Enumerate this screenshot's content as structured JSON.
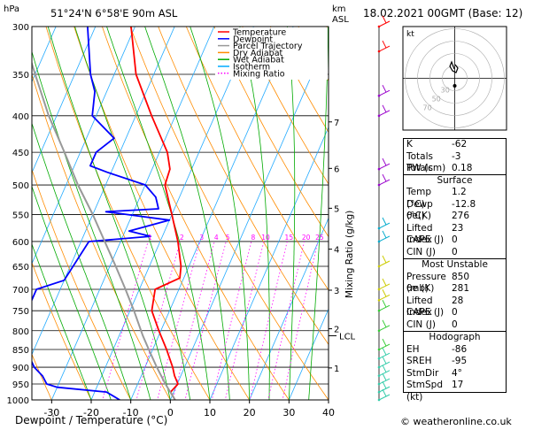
{
  "header": {
    "left_unit": "hPa",
    "location": "51°24'N  6°58'E  90m  ASL",
    "right_unit_top": "km",
    "right_unit_bottom": "ASL",
    "datetime": "18.02.2021  00GMT  (Base: 12)"
  },
  "footer": {
    "xlabel": "Dewpoint / Temperature (°C)",
    "copyright": "© weatheronline.co.uk"
  },
  "ylabel_right": "Mixing Ratio (g/kg)",
  "hodograph": {
    "unit": "kt",
    "ring_labels": [
      "70",
      "50",
      "30"
    ]
  },
  "legend": [
    {
      "label": "Temperature",
      "color": "#ff0000"
    },
    {
      "label": "Dewpoint",
      "color": "#0000ff"
    },
    {
      "label": "Parcel Trajectory",
      "color": "#999999"
    },
    {
      "label": "Dry Adiabat",
      "color": "#ff8c00"
    },
    {
      "label": "Wet Adiabat",
      "color": "#00aa00"
    },
    {
      "label": "Isotherm",
      "color": "#00aaff"
    },
    {
      "label": "Mixing Ratio",
      "color": "#ff00ff"
    }
  ],
  "chart_data": {
    "type": "line",
    "title": "",
    "xlabel": "Dewpoint / Temperature (°C)",
    "ylabel": "hPa",
    "xlim": [
      -35,
      40
    ],
    "ylim": [
      1000,
      300
    ],
    "y_scale": "log",
    "x_ticks": [
      -30,
      -20,
      -10,
      0,
      10,
      20,
      30,
      40
    ],
    "pressure_ticks": [
      300,
      350,
      400,
      450,
      500,
      550,
      600,
      650,
      700,
      750,
      800,
      850,
      900,
      950,
      1000
    ],
    "km_ticks": [
      {
        "label": "7",
        "p": 408
      },
      {
        "label": "6",
        "p": 474
      },
      {
        "label": "5",
        "p": 539
      },
      {
        "label": "4",
        "p": 615
      },
      {
        "label": "3",
        "p": 702
      },
      {
        "label": "2",
        "p": 795
      },
      {
        "label": "1",
        "p": 902
      }
    ],
    "lcl_label": "LCL",
    "lcl_p": 813,
    "mixing_ratio_labels": [
      "1",
      "2",
      "3",
      "4",
      "5",
      "8",
      "10",
      "15",
      "20",
      "25"
    ],
    "mixing_ratio_values": [
      1,
      2,
      3,
      4,
      5,
      8,
      10,
      15,
      20,
      25
    ],
    "series": [
      {
        "name": "Temperature",
        "color": "#ff0000",
        "p": [
          1000,
          975,
          950,
          925,
          900,
          850,
          800,
          750,
          700,
          675,
          650,
          600,
          550,
          500,
          475,
          450,
          400,
          350,
          300
        ],
        "t": [
          1.2,
          -0.8,
          0.2,
          -1.6,
          -3.0,
          -6.5,
          -10.5,
          -14.5,
          -16.0,
          -11.0,
          -12.0,
          -15.5,
          -20.0,
          -25.0,
          -25.5,
          -28.0,
          -36.0,
          -44.5,
          -51.0
        ]
      },
      {
        "name": "Dewpoint",
        "color": "#0000ff",
        "p": [
          1000,
          975,
          960,
          950,
          925,
          900,
          850,
          800,
          750,
          700,
          680,
          600,
          590,
          580,
          560,
          545,
          540,
          520,
          500,
          480,
          470,
          450,
          430,
          400,
          370,
          350,
          300
        ],
        "t": [
          -12.8,
          -17.0,
          -30.0,
          -33.0,
          -35.0,
          -38.0,
          -42.0,
          -44.0,
          -46.0,
          -46.0,
          -40.0,
          -38.0,
          -23.0,
          -29.0,
          -20.0,
          -37.0,
          -24.0,
          -26.0,
          -30.0,
          -41.0,
          -46.0,
          -46.0,
          -43.0,
          -51.0,
          -53.0,
          -56.0,
          -62.0
        ]
      },
      {
        "name": "Parcel Trajectory",
        "color": "#999999",
        "p": [
          1000,
          950,
          900,
          850,
          813,
          800,
          750,
          700,
          650,
          600,
          550,
          500,
          450,
          400,
          350,
          300
        ],
        "t": [
          1.2,
          -3.0,
          -7.0,
          -11.0,
          -14.0,
          -15.0,
          -19.0,
          -23.5,
          -28.5,
          -34.0,
          -40.0,
          -47.0,
          -54.0,
          -62.0,
          -70.0,
          -79.0
        ]
      }
    ]
  },
  "winds": [
    {
      "p": 1000,
      "color": "#33ccaa"
    },
    {
      "p": 975,
      "color": "#33ccaa"
    },
    {
      "p": 950,
      "color": "#33ccaa"
    },
    {
      "p": 925,
      "color": "#33ccaa"
    },
    {
      "p": 900,
      "color": "#33ccaa"
    },
    {
      "p": 875,
      "color": "#33ccaa"
    },
    {
      "p": 850,
      "color": "#33cc33"
    },
    {
      "p": 800,
      "color": "#33cc33"
    },
    {
      "p": 750,
      "color": "#33cc33"
    },
    {
      "p": 725,
      "color": "#cccc00"
    },
    {
      "p": 700,
      "color": "#cccc00"
    },
    {
      "p": 650,
      "color": "#cccc00"
    },
    {
      "p": 600,
      "color": "#00aacc"
    },
    {
      "p": 575,
      "color": "#00aacc"
    },
    {
      "p": 500,
      "color": "#9900cc"
    },
    {
      "p": 475,
      "color": "#9900cc"
    },
    {
      "p": 400,
      "color": "#9900cc"
    },
    {
      "p": 375,
      "color": "#9900cc"
    },
    {
      "p": 325,
      "color": "#ff0000"
    },
    {
      "p": 300,
      "color": "#ff0000"
    }
  ],
  "indices": [
    {
      "label": "K",
      "value": "-62"
    },
    {
      "label": "Totals Totals",
      "value": "-3"
    },
    {
      "label": "PW (cm)",
      "value": "0.18"
    }
  ],
  "surface": {
    "title": "Surface",
    "rows": [
      {
        "label": "Temp (°C)",
        "value": "1.2"
      },
      {
        "label": "Dewp (°C)",
        "value": "-12.8"
      },
      {
        "label": "θe(K)",
        "value": "276"
      },
      {
        "label": "Lifted Index",
        "value": "23"
      },
      {
        "label": "CAPE (J)",
        "value": "0"
      },
      {
        "label": "CIN (J)",
        "value": "0"
      }
    ]
  },
  "most_unstable": {
    "title": "Most Unstable",
    "rows": [
      {
        "label": "Pressure (mb)",
        "value": "850"
      },
      {
        "label": "θe (K)",
        "value": "281"
      },
      {
        "label": "Lifted Index",
        "value": "28"
      },
      {
        "label": "CAPE (J)",
        "value": "0"
      },
      {
        "label": "CIN (J)",
        "value": "0"
      }
    ]
  },
  "hodograph_table": {
    "title": "Hodograph",
    "rows": [
      {
        "label": "EH",
        "value": "-86"
      },
      {
        "label": "SREH",
        "value": "-95"
      },
      {
        "label": "StmDir",
        "value": "4°"
      },
      {
        "label": "StmSpd (kt)",
        "value": "17"
      }
    ]
  }
}
